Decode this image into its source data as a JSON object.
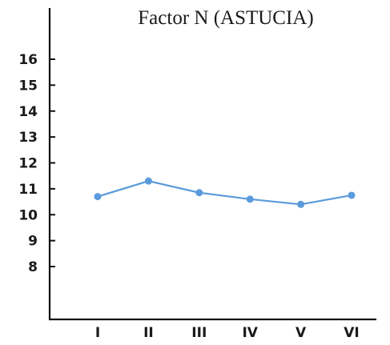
{
  "chart_data": {
    "type": "line",
    "title": "Factor N (ASTUCIA)",
    "xlabel": "",
    "ylabel": "",
    "categories": [
      "I",
      "II",
      "III",
      "IV",
      "V",
      "VI"
    ],
    "series": [
      {
        "values": [
          10.7,
          11.3,
          10.85,
          10.6,
          10.4,
          10.75
        ]
      }
    ],
    "y_ticks": [
      8,
      9,
      10,
      11,
      12,
      13,
      14,
      15,
      16
    ],
    "ylim": [
      5,
      18
    ],
    "grid": false,
    "line_color": "#5b9bdc",
    "axis_color": "#111111"
  }
}
